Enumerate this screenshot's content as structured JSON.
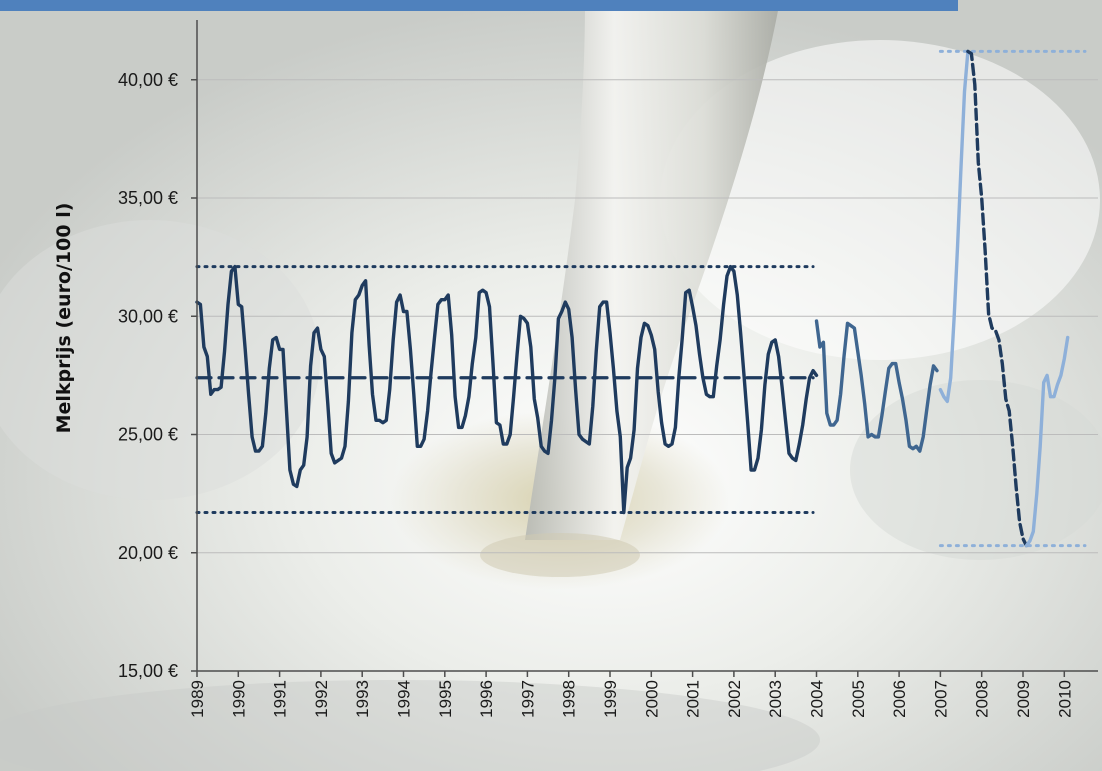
{
  "chart_data": {
    "type": "line",
    "title": "",
    "xlabel": "",
    "ylabel": "Melkprijs (euro/100 l)",
    "ylim": [
      15,
      42.5
    ],
    "xlim": [
      "1989-01",
      "2010-07"
    ],
    "grid": true,
    "y_ticks": [
      "15,00 €",
      "20,00 €",
      "25,00 €",
      "30,00 €",
      "35,00 €",
      "40,00 €"
    ],
    "y_tick_values": [
      15,
      20,
      25,
      30,
      35,
      40
    ],
    "x_ticks": [
      "1989",
      "1990",
      "1991",
      "1992",
      "1993",
      "1994",
      "1995",
      "1996",
      "1997",
      "1998",
      "1999",
      "2000",
      "2001",
      "2002",
      "2003",
      "2004",
      "2005",
      "2006",
      "2007",
      "2008",
      "2009",
      "2010"
    ],
    "series": [
      {
        "color": "#1f3b5e",
        "style": "solid",
        "points": [
          [
            "1989-01",
            30.6
          ],
          [
            "1989-02",
            30.5
          ],
          [
            "1989-03",
            28.7
          ],
          [
            "1989-04",
            28.3
          ],
          [
            "1989-05",
            26.7
          ],
          [
            "1989-06",
            26.9
          ],
          [
            "1989-07",
            26.9
          ],
          [
            "1989-08",
            27.0
          ],
          [
            "1989-09",
            28.5
          ],
          [
            "1989-10",
            30.5
          ],
          [
            "1989-11",
            31.9
          ],
          [
            "1989-12",
            32.1
          ],
          [
            "1990-01",
            30.5
          ],
          [
            "1990-02",
            30.4
          ],
          [
            "1990-03",
            28.6
          ],
          [
            "1990-04",
            26.7
          ],
          [
            "1990-05",
            24.9
          ],
          [
            "1990-06",
            24.3
          ],
          [
            "1990-07",
            24.3
          ],
          [
            "1990-08",
            24.5
          ],
          [
            "1990-09",
            25.9
          ],
          [
            "1990-10",
            27.8
          ],
          [
            "1990-11",
            29.0
          ],
          [
            "1990-12",
            29.1
          ],
          [
            "1991-01",
            28.6
          ],
          [
            "1991-02",
            28.6
          ],
          [
            "1991-03",
            26.0
          ],
          [
            "1991-04",
            23.5
          ],
          [
            "1991-05",
            22.9
          ],
          [
            "1991-06",
            22.8
          ],
          [
            "1991-07",
            23.5
          ],
          [
            "1991-08",
            23.7
          ],
          [
            "1991-09",
            24.9
          ],
          [
            "1991-10",
            27.9
          ],
          [
            "1991-11",
            29.3
          ],
          [
            "1991-12",
            29.5
          ],
          [
            "1992-01",
            28.6
          ],
          [
            "1992-02",
            28.3
          ],
          [
            "1992-03",
            26.3
          ],
          [
            "1992-04",
            24.2
          ],
          [
            "1992-05",
            23.8
          ],
          [
            "1992-06",
            23.9
          ],
          [
            "1992-07",
            24.0
          ],
          [
            "1992-08",
            24.5
          ],
          [
            "1992-09",
            26.4
          ],
          [
            "1992-10",
            29.3
          ],
          [
            "1992-11",
            30.7
          ],
          [
            "1992-12",
            30.9
          ],
          [
            "1993-01",
            31.3
          ],
          [
            "1993-02",
            31.5
          ],
          [
            "1993-03",
            28.8
          ],
          [
            "1993-04",
            26.7
          ],
          [
            "1993-05",
            25.6
          ],
          [
            "1993-06",
            25.6
          ],
          [
            "1993-07",
            25.5
          ],
          [
            "1993-08",
            25.6
          ],
          [
            "1993-09",
            26.9
          ],
          [
            "1993-10",
            29.0
          ],
          [
            "1993-11",
            30.6
          ],
          [
            "1993-12",
            30.9
          ],
          [
            "1994-01",
            30.2
          ],
          [
            "1994-02",
            30.2
          ],
          [
            "1994-03",
            28.6
          ],
          [
            "1994-04",
            26.7
          ],
          [
            "1994-05",
            24.5
          ],
          [
            "1994-06",
            24.5
          ],
          [
            "1994-07",
            24.8
          ],
          [
            "1994-08",
            26.0
          ],
          [
            "1994-09",
            27.6
          ],
          [
            "1994-10",
            29.1
          ],
          [
            "1994-11",
            30.5
          ],
          [
            "1994-12",
            30.7
          ],
          [
            "1995-01",
            30.7
          ],
          [
            "1995-02",
            30.9
          ],
          [
            "1995-03",
            29.2
          ],
          [
            "1995-04",
            26.6
          ],
          [
            "1995-05",
            25.3
          ],
          [
            "1995-06",
            25.3
          ],
          [
            "1995-07",
            25.8
          ],
          [
            "1995-08",
            26.6
          ],
          [
            "1995-09",
            28.0
          ],
          [
            "1995-10",
            29.1
          ],
          [
            "1995-11",
            31.0
          ],
          [
            "1995-12",
            31.1
          ],
          [
            "1996-01",
            31.0
          ],
          [
            "1996-02",
            30.4
          ],
          [
            "1996-03",
            28.0
          ],
          [
            "1996-04",
            25.5
          ],
          [
            "1996-05",
            25.4
          ],
          [
            "1996-06",
            24.6
          ],
          [
            "1996-07",
            24.6
          ],
          [
            "1996-08",
            25.0
          ],
          [
            "1996-09",
            26.6
          ],
          [
            "1996-10",
            28.4
          ],
          [
            "1996-11",
            30.0
          ],
          [
            "1996-12",
            29.9
          ],
          [
            "1997-01",
            29.7
          ],
          [
            "1997-02",
            28.7
          ],
          [
            "1997-03",
            26.5
          ],
          [
            "1997-04",
            25.7
          ],
          [
            "1997-05",
            24.5
          ],
          [
            "1997-06",
            24.3
          ],
          [
            "1997-07",
            24.2
          ],
          [
            "1997-08",
            25.6
          ],
          [
            "1997-09",
            27.4
          ],
          [
            "1997-10",
            29.9
          ],
          [
            "1997-11",
            30.2
          ],
          [
            "1997-12",
            30.6
          ],
          [
            "1998-01",
            30.3
          ],
          [
            "1998-02",
            29.1
          ],
          [
            "1998-03",
            26.9
          ],
          [
            "1998-04",
            25.0
          ],
          [
            "1998-05",
            24.8
          ],
          [
            "1998-06",
            24.7
          ],
          [
            "1998-07",
            24.6
          ],
          [
            "1998-08",
            26.2
          ],
          [
            "1998-09",
            28.5
          ],
          [
            "1998-10",
            30.4
          ],
          [
            "1998-11",
            30.6
          ],
          [
            "1998-12",
            30.6
          ],
          [
            "1999-01",
            29.3
          ],
          [
            "1999-02",
            27.8
          ],
          [
            "1999-03",
            26.0
          ],
          [
            "1999-04",
            24.9
          ],
          [
            "1999-05",
            21.7
          ],
          [
            "1999-06",
            23.6
          ],
          [
            "1999-07",
            24.0
          ],
          [
            "1999-08",
            25.2
          ],
          [
            "1999-09",
            27.8
          ],
          [
            "1999-10",
            29.1
          ],
          [
            "1999-11",
            29.7
          ],
          [
            "1999-12",
            29.6
          ],
          [
            "2000-01",
            29.2
          ],
          [
            "2000-02",
            28.6
          ],
          [
            "2000-03",
            26.8
          ],
          [
            "2000-04",
            25.5
          ],
          [
            "2000-05",
            24.6
          ],
          [
            "2000-06",
            24.5
          ],
          [
            "2000-07",
            24.6
          ],
          [
            "2000-08",
            25.3
          ],
          [
            "2000-09",
            27.4
          ],
          [
            "2000-10",
            29.1
          ],
          [
            "2000-11",
            31.0
          ],
          [
            "2000-12",
            31.1
          ],
          [
            "2001-01",
            30.4
          ],
          [
            "2001-02",
            29.6
          ],
          [
            "2001-03",
            28.4
          ],
          [
            "2001-04",
            27.4
          ],
          [
            "2001-05",
            26.7
          ],
          [
            "2001-06",
            26.6
          ],
          [
            "2001-07",
            26.6
          ],
          [
            "2001-08",
            27.9
          ],
          [
            "2001-09",
            29.0
          ],
          [
            "2001-10",
            30.5
          ],
          [
            "2001-11",
            31.7
          ],
          [
            "2001-12",
            32.1
          ],
          [
            "2002-01",
            31.9
          ],
          [
            "2002-02",
            30.9
          ],
          [
            "2002-03",
            29.2
          ],
          [
            "2002-04",
            27.4
          ],
          [
            "2002-05",
            25.5
          ],
          [
            "2002-06",
            23.5
          ],
          [
            "2002-07",
            23.5
          ],
          [
            "2002-08",
            24.0
          ],
          [
            "2002-09",
            25.2
          ],
          [
            "2002-10",
            27.1
          ],
          [
            "2002-11",
            28.4
          ],
          [
            "2002-12",
            28.9
          ],
          [
            "2003-01",
            29.0
          ],
          [
            "2003-02",
            28.3
          ],
          [
            "2003-03",
            27.0
          ],
          [
            "2003-04",
            25.6
          ],
          [
            "2003-05",
            24.2
          ],
          [
            "2003-06",
            24.0
          ],
          [
            "2003-07",
            23.9
          ],
          [
            "2003-08",
            24.6
          ],
          [
            "2003-09",
            25.4
          ],
          [
            "2003-10",
            26.5
          ],
          [
            "2003-11",
            27.4
          ],
          [
            "2003-12",
            27.7
          ],
          [
            "2004-01",
            27.5
          ]
        ]
      },
      {
        "color": "#3f6690",
        "style": "solid",
        "points": [
          [
            "2004-01",
            29.8
          ],
          [
            "2004-02",
            28.7
          ],
          [
            "2004-03",
            28.9
          ],
          [
            "2004-04",
            25.9
          ],
          [
            "2004-05",
            25.4
          ],
          [
            "2004-06",
            25.4
          ],
          [
            "2004-07",
            25.6
          ],
          [
            "2004-08",
            26.7
          ],
          [
            "2004-09",
            28.3
          ],
          [
            "2004-10",
            29.7
          ],
          [
            "2004-11",
            29.6
          ],
          [
            "2004-12",
            29.5
          ],
          [
            "2005-01",
            28.5
          ],
          [
            "2005-02",
            27.5
          ],
          [
            "2005-03",
            26.3
          ],
          [
            "2005-04",
            24.9
          ],
          [
            "2005-05",
            25.0
          ],
          [
            "2005-06",
            24.9
          ],
          [
            "2005-07",
            24.9
          ],
          [
            "2005-08",
            25.8
          ],
          [
            "2005-09",
            26.8
          ],
          [
            "2005-10",
            27.8
          ],
          [
            "2005-11",
            28.0
          ],
          [
            "2005-12",
            28.0
          ],
          [
            "2006-01",
            27.2
          ],
          [
            "2006-02",
            26.5
          ],
          [
            "2006-03",
            25.6
          ],
          [
            "2006-04",
            24.5
          ],
          [
            "2006-05",
            24.4
          ],
          [
            "2006-06",
            24.5
          ],
          [
            "2006-07",
            24.3
          ],
          [
            "2006-08",
            24.9
          ],
          [
            "2006-09",
            26.0
          ],
          [
            "2006-10",
            27.1
          ],
          [
            "2006-11",
            27.9
          ],
          [
            "2006-12",
            27.7
          ]
        ]
      },
      {
        "color": "#8eb0d9",
        "style": "solid",
        "points": [
          [
            "2007-01",
            26.9
          ],
          [
            "2007-02",
            26.6
          ],
          [
            "2007-03",
            26.4
          ],
          [
            "2007-04",
            27.4
          ],
          [
            "2007-05",
            30.0
          ],
          [
            "2007-06",
            33.0
          ],
          [
            "2007-07",
            36.3
          ],
          [
            "2007-08",
            39.5
          ],
          [
            "2007-09",
            41.2
          ]
        ]
      },
      {
        "color": "#1f3b5e",
        "style": "dashed",
        "points": [
          [
            "2007-09",
            41.2
          ],
          [
            "2007-10",
            41.1
          ],
          [
            "2007-11",
            39.8
          ],
          [
            "2007-12",
            36.5
          ],
          [
            "2008-01",
            35.0
          ],
          [
            "2008-02",
            32.8
          ],
          [
            "2008-03",
            30.1
          ],
          [
            "2008-04",
            29.5
          ],
          [
            "2008-05",
            29.4
          ],
          [
            "2008-06",
            29.0
          ],
          [
            "2008-07",
            28.0
          ],
          [
            "2008-08",
            26.5
          ],
          [
            "2008-09",
            26.0
          ],
          [
            "2008-10",
            24.5
          ],
          [
            "2008-11",
            22.8
          ],
          [
            "2008-12",
            21.3
          ],
          [
            "2009-01",
            20.6
          ],
          [
            "2009-02",
            20.3
          ]
        ]
      },
      {
        "color": "#8eb0d9",
        "style": "solid",
        "points": [
          [
            "2009-02",
            20.3
          ],
          [
            "2009-03",
            20.5
          ],
          [
            "2009-04",
            20.9
          ],
          [
            "2009-05",
            22.5
          ],
          [
            "2009-06",
            24.5
          ],
          [
            "2009-07",
            27.2
          ],
          [
            "2009-08",
            27.5
          ],
          [
            "2009-09",
            26.6
          ],
          [
            "2009-10",
            26.6
          ],
          [
            "2009-11",
            27.1
          ],
          [
            "2009-12",
            27.5
          ],
          [
            "2010-01",
            28.2
          ],
          [
            "2010-02",
            29.1
          ]
        ]
      }
    ],
    "reference_lines": [
      {
        "y": 32.1,
        "from": "1989-01",
        "to": "2003-12",
        "style": "dotted",
        "color": "#1f3b5e"
      },
      {
        "y": 27.4,
        "from": "1989-01",
        "to": "2003-12",
        "style": "dashed",
        "color": "#1f3b5e"
      },
      {
        "y": 21.7,
        "from": "1989-01",
        "to": "2003-12",
        "style": "dotted",
        "color": "#1f3b5e"
      },
      {
        "y": 41.2,
        "from": "2007-01",
        "to": "2010-07",
        "style": "dotted",
        "color": "#8eb0d9"
      },
      {
        "y": 20.3,
        "from": "2007-01",
        "to": "2010-07",
        "style": "dotted",
        "color": "#8eb0d9"
      }
    ],
    "colors": {
      "banner": "#4f81bd",
      "gridline": "#bcbcbc",
      "axis": "#4d4d4d"
    },
    "background": "photo-of-pouring-milk"
  }
}
